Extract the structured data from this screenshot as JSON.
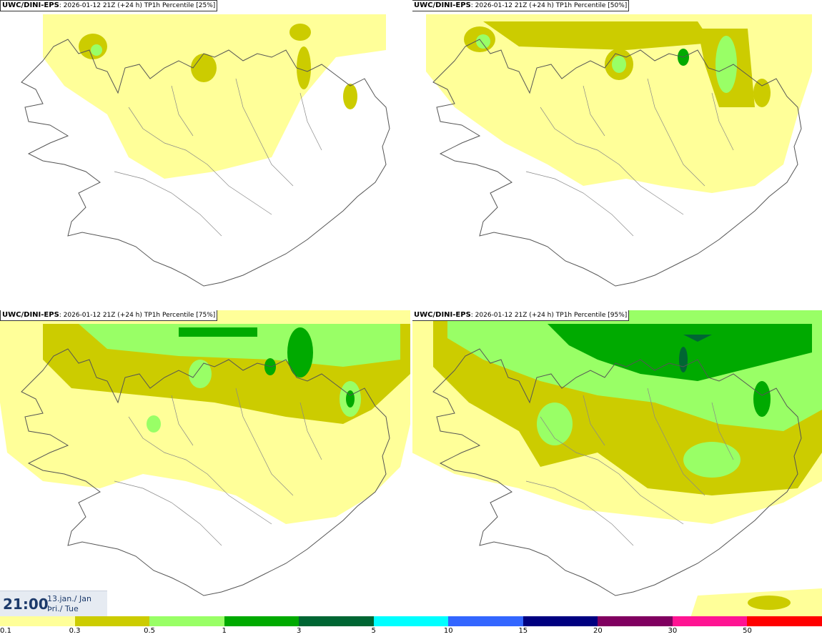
{
  "panels": [
    {
      "model": "UWC/DINI-EPS",
      "run": ": 2026-01-12 21Z (+24 h)",
      "field": "TP1h Percentile [25%]"
    },
    {
      "model": "UWC/DINI-EPS",
      "run": ": 2026-01-12 21Z (+24 h)",
      "field": "TP1h Percentile [50%]"
    },
    {
      "model": "UWC/DINI-EPS",
      "run": ": 2026-01-12 21Z (+24 h)",
      "field": "TP1h Percentile [75%]"
    },
    {
      "model": "UWC/DINI-EPS",
      "run": ": 2026-01-12 21Z (+24 h)",
      "field": "TP1h Percentile [95%]"
    }
  ],
  "valid": {
    "time": "21:00",
    "date": "13.jan./ Jan",
    "weekday": "Þri./ Tue"
  },
  "legend": {
    "colors": [
      "#ffff99",
      "#cccc00",
      "#99ff66",
      "#00aa00",
      "#006633",
      "#00ffff",
      "#3366ff",
      "#000080",
      "#800060",
      "#ff1493",
      "#ff0000"
    ],
    "ticks": [
      "0.1",
      "0.3",
      "0.5",
      "1",
      "3",
      "5",
      "10",
      "15",
      "20",
      "30",
      "50"
    ]
  }
}
